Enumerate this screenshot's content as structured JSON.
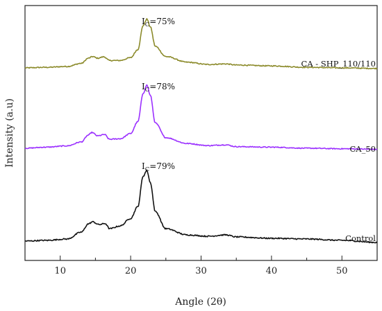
{
  "chart_data": {
    "type": "line",
    "xlabel": "Angle (2θ)",
    "ylabel": "Intensity (a.u)",
    "xlim": [
      5,
      55
    ],
    "xticks": [
      10,
      20,
      30,
      40,
      50
    ],
    "yticks_shown": false,
    "grid": false,
    "series": [
      {
        "name": "CA - SHP_110/110",
        "color": "#8b8a2a",
        "annotation": {
          "prefix": "I",
          "sub": "C",
          "suffix": "=75%"
        },
        "x": [
          5,
          8,
          11,
          13,
          14,
          14.6,
          15.3,
          16.2,
          17,
          18.5,
          20,
          21,
          21.8,
          22.3,
          22.8,
          23.5,
          25,
          28,
          31,
          33.5,
          35,
          40,
          45,
          50,
          55
        ],
        "y": [
          0,
          0.1,
          0.25,
          0.8,
          1.7,
          2.0,
          1.7,
          1.95,
          1.3,
          1.3,
          1.8,
          3.2,
          7.5,
          8.6,
          7.2,
          3.8,
          2.0,
          1.0,
          0.6,
          0.7,
          0.5,
          0.35,
          0.1,
          0.0,
          -0.1
        ]
      },
      {
        "name": "CA_50",
        "color": "#9b30ff",
        "annotation": {
          "prefix": "I",
          "sub": "C",
          "suffix": "=78%"
        },
        "x": [
          5,
          8,
          11,
          13,
          14,
          14.5,
          15.3,
          16.3,
          17,
          18.5,
          20,
          21,
          21.8,
          22.3,
          22.8,
          23.5,
          25,
          28,
          31,
          33.5,
          35,
          40,
          45,
          50,
          55
        ],
        "y": [
          0,
          0.2,
          0.45,
          1.2,
          2.5,
          3.0,
          2.35,
          2.6,
          1.7,
          1.8,
          2.8,
          5.0,
          10.5,
          12.0,
          10.0,
          4.8,
          2.0,
          0.9,
          0.5,
          0.65,
          0.3,
          0.2,
          0.0,
          -0.1,
          -0.2
        ]
      },
      {
        "name": "Control",
        "color": "#111111",
        "annotation": {
          "prefix": "I",
          "sub": "C",
          "suffix": "=79%"
        },
        "x": [
          5,
          8,
          11,
          13,
          14,
          14.6,
          15.5,
          16.4,
          17,
          18.5,
          20,
          21,
          21.8,
          22.3,
          22.8,
          23.5,
          25,
          28,
          31,
          33.5,
          35,
          40,
          45,
          50,
          55
        ],
        "y": [
          0,
          0.1,
          0.3,
          1.3,
          2.5,
          2.8,
          2.4,
          2.55,
          1.8,
          2.2,
          3.3,
          5.0,
          9.5,
          10.3,
          8.5,
          4.3,
          1.8,
          0.9,
          0.7,
          0.9,
          0.6,
          0.4,
          0.3,
          0.1,
          -0.2
        ]
      }
    ]
  }
}
